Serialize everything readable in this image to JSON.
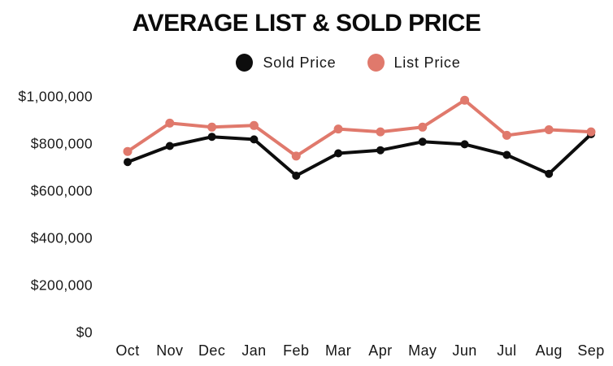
{
  "title": "AVERAGE LIST & SOLD PRICE",
  "legend": {
    "items": [
      {
        "label": "Sold Price",
        "color": "#0d0d0d"
      },
      {
        "label": "List Price",
        "color": "#e0796c"
      }
    ]
  },
  "colors": {
    "sold_series": "#0d0d0d",
    "list_series": "#e0796c",
    "background": "#ffffff",
    "text": "#161616"
  },
  "chart_data": {
    "type": "line",
    "title": "AVERAGE LIST & SOLD PRICE",
    "x": [
      "Oct",
      "Nov",
      "Dec",
      "Jan",
      "Feb",
      "Mar",
      "Apr",
      "May",
      "Jun",
      "Jul",
      "Aug",
      "Sep"
    ],
    "series": [
      {
        "name": "Sold Price",
        "color": "#0d0d0d",
        "values": [
          720000,
          788000,
          827000,
          816000,
          662000,
          757000,
          770000,
          806000,
          795000,
          750000,
          670000,
          838000
        ]
      },
      {
        "name": "List Price",
        "color": "#e0796c",
        "values": [
          765000,
          885000,
          868000,
          875000,
          745000,
          860000,
          848000,
          868000,
          982000,
          833000,
          857000,
          848000
        ]
      }
    ],
    "xlabel": "",
    "ylabel": "",
    "ylim": [
      0,
      1000000
    ],
    "yticks": [
      0,
      200000,
      400000,
      600000,
      800000,
      1000000
    ],
    "ytick_prefix": "$",
    "grid": false,
    "legend_position": "top"
  }
}
